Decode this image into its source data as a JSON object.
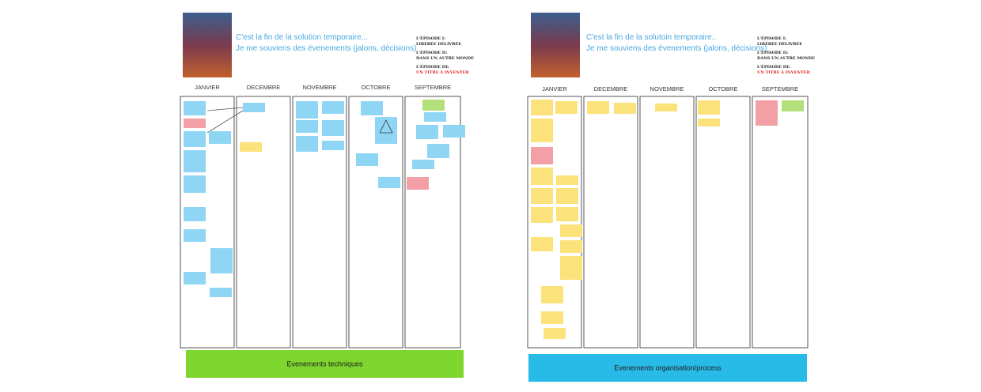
{
  "boards": [
    {
      "intro": [
        "C'est la fin de la solution temporaire...",
        "Je me souviens des évenements (jalons, décisions)"
      ],
      "episodes": [
        {
          "label": "L'ÉPISODE I:",
          "title": "LIBÉRÉE DÉLIVRÉE"
        },
        {
          "label": "L'ÉPISODE II:",
          "title": "DANS UN AUTRE MONDE"
        },
        {
          "label": "L'ÉPISODE III:",
          "title": "UN TITRE À INVENTER"
        }
      ],
      "columns": [
        "JANVIER",
        "DECEMBRE",
        "NOVEMBRE",
        "OCTOBRE",
        "SEPTEMBRE"
      ],
      "footer": "Evenements techniques"
    },
    {
      "intro": [
        "C'est la fin de la solutoin temporaire..",
        "Je me souviens des évenements (jalons, décisions)"
      ],
      "episodes": [
        {
          "label": "L'ÉPISODE I:",
          "title": "LIBÉRÉE DÉLIVRÉE"
        },
        {
          "label": "L'ÉPISODE II:",
          "title": "DANS UN AUTRE MONDE"
        },
        {
          "label": "L'ÉPISODE III:",
          "title": "UN TITRE À INVENTER"
        }
      ],
      "columns": [
        "JANVIER",
        "DECEMBRE",
        "NOVEMBRE",
        "OCTOBRE",
        "SEPTEMBRE"
      ],
      "footer": "Evenements organisation/process"
    }
  ]
}
